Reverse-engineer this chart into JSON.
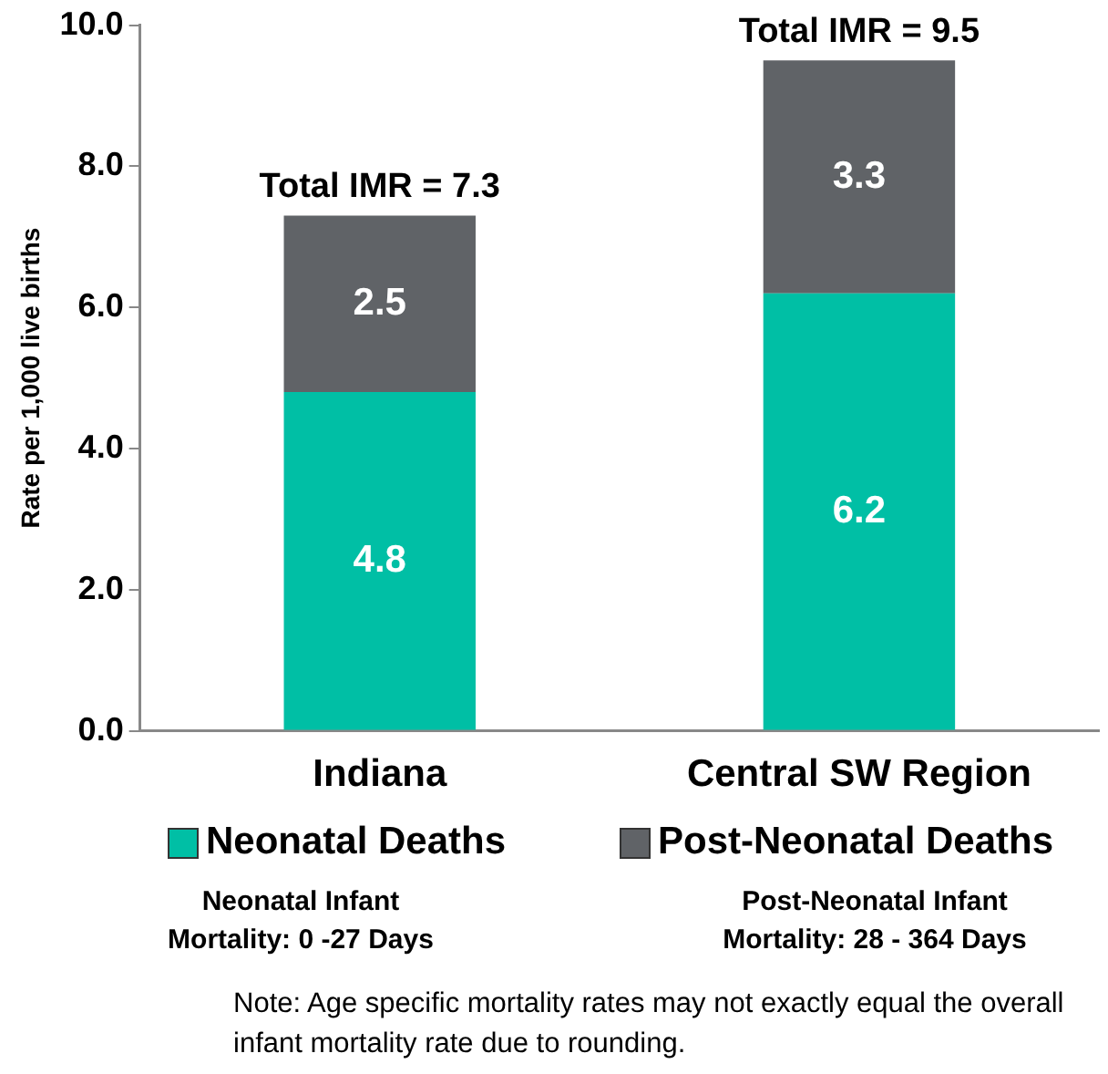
{
  "chart_data": {
    "type": "bar",
    "stacked": true,
    "ylabel": "Rate per 1,000 live births",
    "categories": [
      "Indiana",
      "Central SW Region"
    ],
    "series": [
      {
        "name": "Neonatal Deaths",
        "color": "#00bfa5",
        "values": [
          4.8,
          6.2
        ]
      },
      {
        "name": "Post-Neonatal Deaths",
        "color": "#606367",
        "values": [
          2.5,
          3.3
        ]
      }
    ],
    "ylim": [
      0,
      10
    ],
    "yticks": [
      {
        "value": 0,
        "label": "0.0"
      },
      {
        "value": 2,
        "label": "2.0"
      },
      {
        "value": 4,
        "label": "4.0"
      },
      {
        "value": 6,
        "label": "6.0"
      },
      {
        "value": 8,
        "label": "8.0"
      },
      {
        "value": 10,
        "label": "10.0"
      }
    ],
    "grid": false,
    "legend": "bottom",
    "data_labels": true,
    "totals": [
      "Total IMR = 7.3",
      "Total IMR = 9.5"
    ],
    "annotations": [
      "Neonatal Infant Mortality: 0 -27 Days",
      "Post-Neonatal Infant Mortality: 28 - 364 Days",
      "Note: Age specific mortality rates may not exactly equal the overall infant mortality rate due to rounding."
    ]
  }
}
